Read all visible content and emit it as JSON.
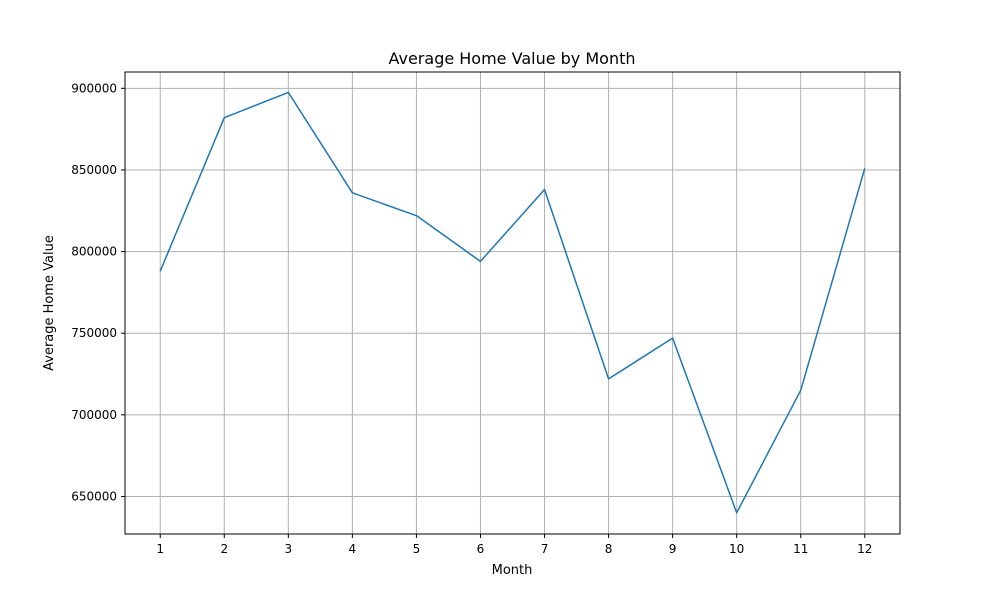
{
  "chart_data": {
    "type": "line",
    "title": "Average Home Value by Month",
    "xlabel": "Month",
    "ylabel": "Average Home Value",
    "x": [
      1,
      2,
      3,
      4,
      5,
      6,
      7,
      8,
      9,
      10,
      11,
      12
    ],
    "x_tick_labels": [
      "1",
      "2",
      "3",
      "4",
      "5",
      "6",
      "7",
      "8",
      "9",
      "10",
      "11",
      "12"
    ],
    "y_ticks": [
      650000,
      700000,
      750000,
      800000,
      850000,
      900000
    ],
    "y_tick_labels": [
      "650000",
      "700000",
      "750000",
      "800000",
      "850000",
      "900000"
    ],
    "xlim": [
      0.45,
      12.55
    ],
    "ylim": [
      627000,
      910000
    ],
    "grid": true,
    "series": [
      {
        "values": [
          788000,
          882000,
          897500,
          836000,
          822000,
          794000,
          838000,
          722000,
          747000,
          640000,
          715000,
          851000
        ],
        "color": "#1f77b4"
      }
    ]
  }
}
